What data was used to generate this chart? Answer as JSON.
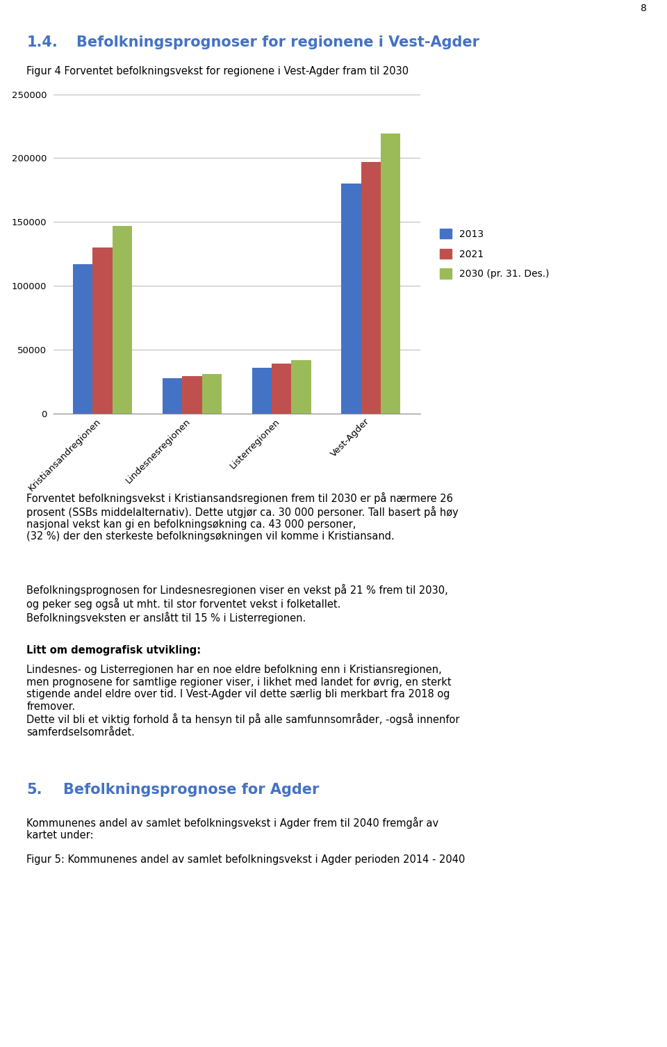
{
  "page_number": "8",
  "section_number": "1.4.",
  "section_title_text": "  Befolkningsprognoser for regionene i Vest-Agder",
  "section_title_color": "#4472C4",
  "fig_caption": "Figur 4 Forventet befolkningsvekst for regionene i Vest-Agder fram til 2030",
  "categories": [
    "Kristiansandregionen",
    "Lindesnesregionen",
    "Listerregionen",
    "Vest-Agder"
  ],
  "series": {
    "2013": [
      117000,
      27500,
      36000,
      180000
    ],
    "2021": [
      130000,
      29500,
      39000,
      197000
    ],
    "2030 (pr. 31. Des.)": [
      147000,
      31000,
      42000,
      219000
    ]
  },
  "bar_colors": {
    "2013": "#4472C4",
    "2021": "#C0504D",
    "2030 (pr. 31. Des.)": "#9BBB59"
  },
  "ylim": [
    0,
    250000
  ],
  "yticks": [
    0,
    50000,
    100000,
    150000,
    200000,
    250000
  ],
  "ytick_labels": [
    "0",
    "50000",
    "100000",
    "150000",
    "200000",
    "250000"
  ],
  "chart_background": "#FFFFFF",
  "grid_color": "#BEBEBE",
  "body_fontsize": 10.5,
  "caption_fontsize": 10.5,
  "title_fontsize": 15
}
